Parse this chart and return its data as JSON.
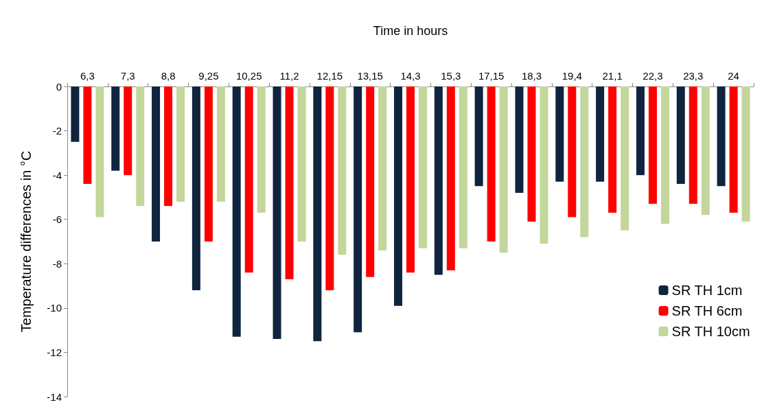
{
  "chart_data": {
    "type": "bar",
    "xlabel": "Time in hours",
    "ylabel": "Temperature differences in °C",
    "categories": [
      "6,3",
      "7,3",
      "8,8",
      "9,25",
      "10,25",
      "11,2",
      "12,15",
      "13,15",
      "14,3",
      "15,3",
      "17,15",
      "18,3",
      "19,4",
      "21,1",
      "22,3",
      "23,3",
      "24"
    ],
    "series": [
      {
        "name": "SR TH 1cm",
        "color": "#0f243e",
        "values": [
          -2.5,
          -3.8,
          -7.0,
          -9.2,
          -11.3,
          -11.4,
          -11.5,
          -11.1,
          -9.9,
          -8.5,
          -4.5,
          -4.8,
          -4.3,
          -4.3,
          -4.0,
          -4.4,
          -4.5
        ]
      },
      {
        "name": "SR TH 6cm",
        "color": "#ff0000",
        "values": [
          -4.4,
          -4.0,
          -5.4,
          -7.0,
          -8.4,
          -8.7,
          -9.2,
          -8.6,
          -8.4,
          -8.3,
          -7.0,
          -6.1,
          -5.9,
          -5.7,
          -5.3,
          -5.3,
          -5.7
        ]
      },
      {
        "name": "SR TH 10cm",
        "color": "#c3d69b",
        "values": [
          -5.9,
          -5.4,
          -5.2,
          -5.2,
          -5.7,
          -7.0,
          -7.6,
          -7.4,
          -7.3,
          -7.3,
          -7.5,
          -7.1,
          -6.8,
          -6.5,
          -6.2,
          -5.8,
          -6.1
        ]
      }
    ],
    "ylim": [
      -14,
      0
    ],
    "yticks": [
      -14,
      -12,
      -10,
      -8,
      -6,
      -4,
      -2,
      0
    ],
    "grid": false,
    "legend": "bottom right"
  }
}
